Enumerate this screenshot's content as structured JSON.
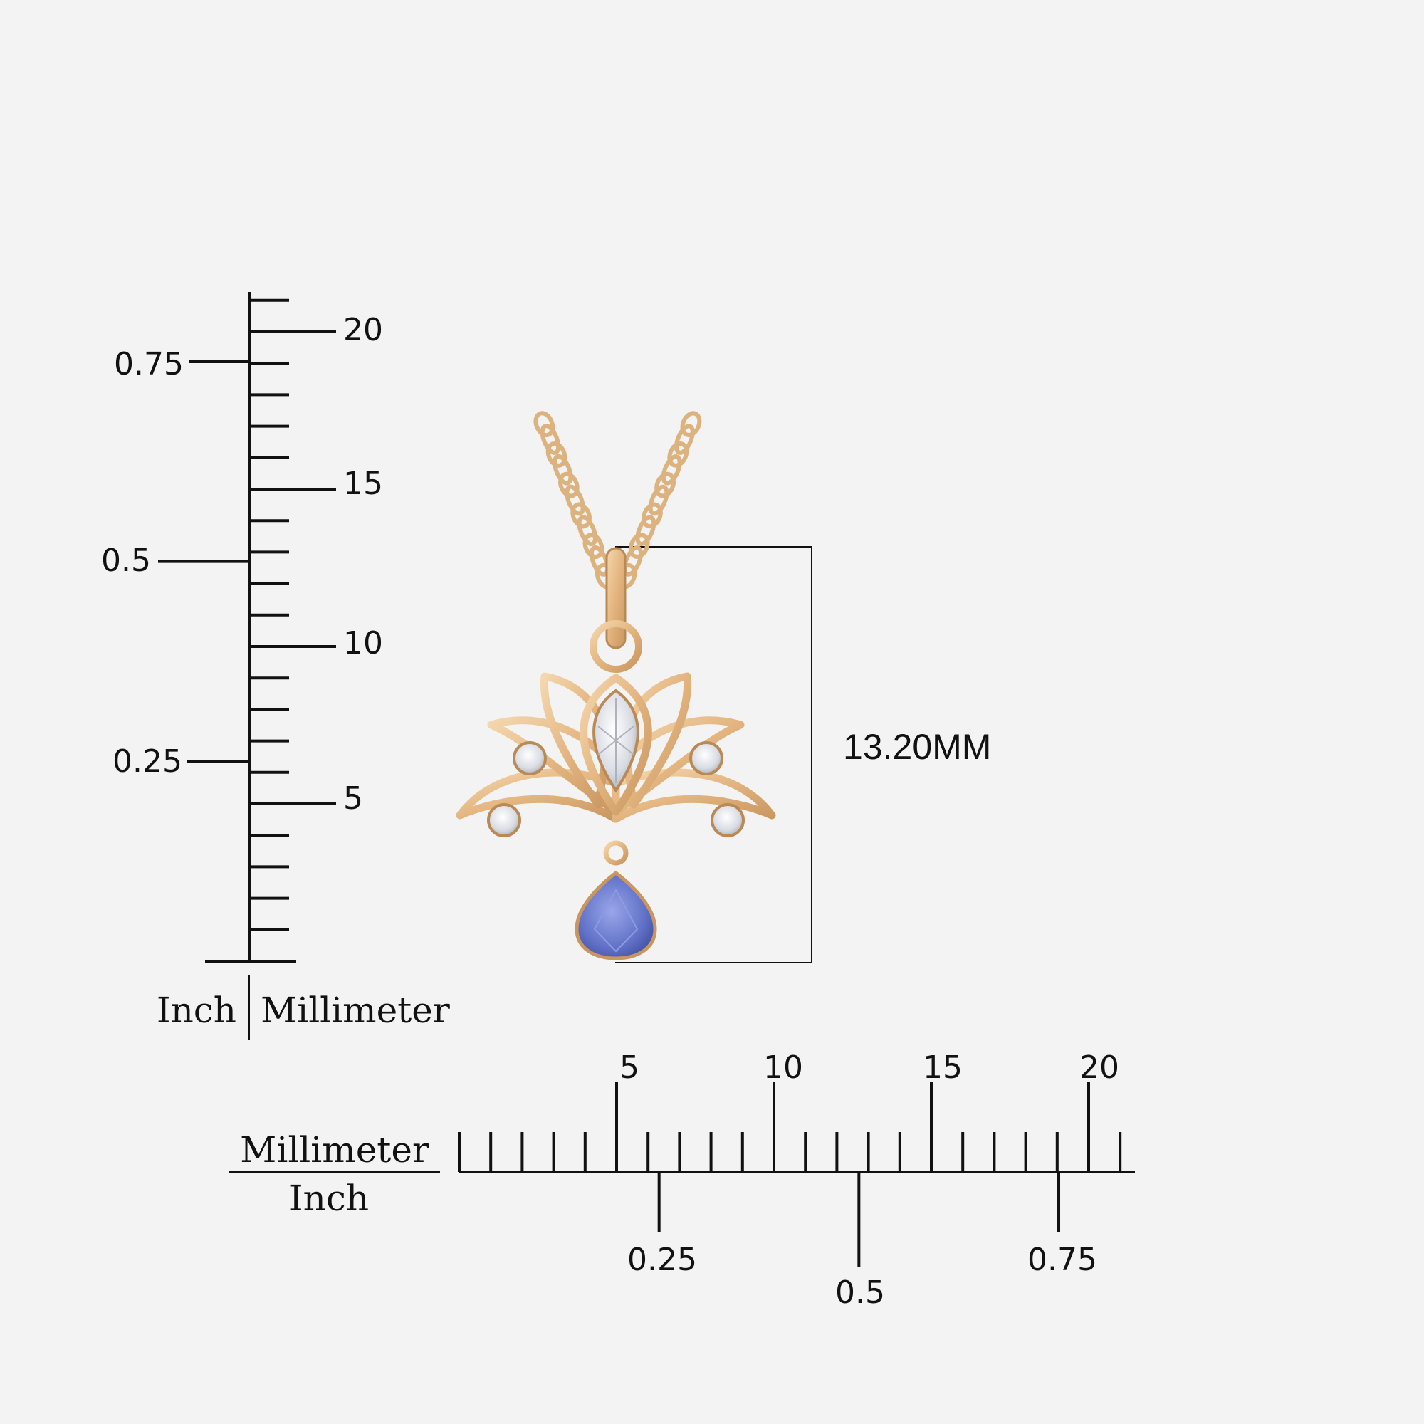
{
  "dimension": {
    "label": "13.20MM"
  },
  "vertical_scale": {
    "unit_left": "Inch",
    "unit_right": "Millimeter",
    "mm_labels": [
      "5",
      "10",
      "15",
      "20"
    ],
    "inch_labels": [
      "0.25",
      "0.5",
      "0.75"
    ]
  },
  "horizontal_scale": {
    "unit_top": "Millimeter",
    "unit_bottom": "Inch",
    "mm_labels": [
      "5",
      "10",
      "15",
      "20"
    ],
    "inch_labels": [
      "0.25",
      "0.5",
      "0.75"
    ]
  },
  "colors": {
    "gold": "#e8c08e",
    "gold_dark": "#b98a55",
    "sapphire": "#5f6fc4",
    "diamond": "#dfe2e8",
    "ink": "#111111"
  }
}
